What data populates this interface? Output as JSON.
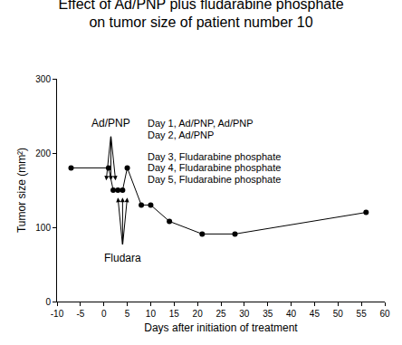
{
  "chart_data": {
    "type": "line",
    "title": [
      "Effect of Ad/PNP plus fludarabine phosphate",
      "on tumor size of patient number 10"
    ],
    "x_label": "Days after initiation of treatment",
    "y_label": "Tumor size (mm²)",
    "x": [
      -7,
      1,
      2,
      3,
      4,
      5,
      8,
      10,
      14,
      21,
      28,
      56
    ],
    "values": [
      180,
      180,
      150,
      150,
      150,
      180,
      130,
      130,
      108,
      91,
      91,
      120
    ],
    "color": "#000000",
    "marker": "circle",
    "line_style": "solid",
    "xlim": [
      -10,
      60
    ],
    "xticks": [
      -10,
      -5,
      0,
      5,
      10,
      15,
      20,
      25,
      30,
      35,
      40,
      45,
      50,
      55,
      60
    ],
    "ylim": [
      0,
      300
    ],
    "yticks": [
      0,
      100,
      200,
      300
    ],
    "grid": false,
    "annotations": [
      {
        "text": "Ad/PNP",
        "x": 1.5,
        "y": 240,
        "arrow_from": [
          1.5,
          224
        ],
        "arrow_to_x": [
          0.5,
          1.5,
          2.5
        ],
        "arrow_to_y": 163
      },
      {
        "text": "Fludara",
        "x": 4,
        "y": 58,
        "arrow_from": [
          4,
          75
        ],
        "arrow_to_x": [
          3,
          4,
          5
        ],
        "arrow_to_y": 140
      }
    ],
    "notes": [
      "Day 1, Ad/PNP, Ad/PNP",
      "Day 2, Ad/PNP",
      "Day 3, Fludarabine phosphate",
      "Day 4, Fludarabine phosphate",
      "Day 5, Fludarabine phosphate"
    ],
    "notes_x": 9,
    "notes_y": [
      240,
      225,
      195,
      180,
      165
    ]
  }
}
